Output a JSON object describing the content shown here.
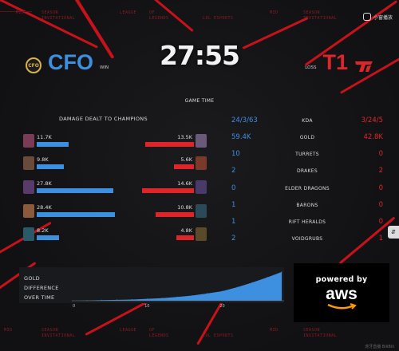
{
  "header": {
    "strip_items": [
      "MID",
      "SEASON",
      "INVITATIONAL",
      "LEAGUE",
      "OF",
      "LEGENDS",
      "LOL",
      "ESPORTS",
      "MID",
      "SEASON",
      "INVITATIONAL"
    ]
  },
  "footer": {
    "strip_items": [
      "MID",
      "SEASON",
      "INVITATIONAL",
      "LEAGUE",
      "OF",
      "LEGENDS",
      "LOL",
      "ESPORTS",
      "MID",
      "SEASON",
      "INVITATIONAL"
    ]
  },
  "overlay": {
    "watermark_label": "小窗播放"
  },
  "match": {
    "game_time": "27:55",
    "game_time_label": "GAME TIME",
    "left_team": {
      "name": "CFO",
      "result": "WIN",
      "logo_text": "CFO",
      "color": "#3d8fe0"
    },
    "right_team": {
      "name": "T1",
      "result": "LOSS",
      "color": "#e0252a"
    }
  },
  "damage": {
    "title": "DAMAGE DEALT TO CHAMPIONS",
    "left": [
      {
        "value": "11.7K",
        "raw": 11.7,
        "portrait_color": "#7b3a55"
      },
      {
        "value": "9.8K",
        "raw": 9.8,
        "portrait_color": "#6a4a3a"
      },
      {
        "value": "27.8K",
        "raw": 27.8,
        "portrait_color": "#5a3a6a"
      },
      {
        "value": "28.4K",
        "raw": 28.4,
        "portrait_color": "#8a5a3a"
      },
      {
        "value": "8.2K",
        "raw": 8.2,
        "portrait_color": "#2a5a6a"
      }
    ],
    "right": [
      {
        "value": "13.5K",
        "raw": 13.5,
        "portrait_color": "#6a5a7a"
      },
      {
        "value": "5.6K",
        "raw": 5.6,
        "portrait_color": "#7a3a2a"
      },
      {
        "value": "14.6K",
        "raw": 14.6,
        "portrait_color": "#4a3a6a"
      },
      {
        "value": "10.8K",
        "raw": 10.8,
        "portrait_color": "#2a4a5a"
      },
      {
        "value": "4.8K",
        "raw": 4.8,
        "portrait_color": "#5a4a2a"
      }
    ],
    "max_scale": 29
  },
  "stats": [
    {
      "label": "KDA",
      "left": "24/3/63",
      "right": "3/24/5"
    },
    {
      "label": "GOLD",
      "left": "59.4K",
      "right": "42.8K"
    },
    {
      "label": "TURRETS",
      "left": "10",
      "right": "0"
    },
    {
      "label": "DRAKES",
      "left": "2",
      "right": "2"
    },
    {
      "label": "ELDER DRAGONS",
      "left": "0",
      "right": "0"
    },
    {
      "label": "BARONS",
      "left": "1",
      "right": "0"
    },
    {
      "label": "RIFT HERALDS",
      "left": "1",
      "right": "0"
    },
    {
      "label": "VOIDGRUBS",
      "left": "2",
      "right": "1"
    }
  ],
  "gold_diff": {
    "label_lines": [
      "GOLD",
      "DIFFERENCE",
      "OVER TIME"
    ],
    "tick_labels": [
      "0",
      "10",
      "20"
    ]
  },
  "chart_data": {
    "type": "area",
    "title": "",
    "xlabel": "",
    "ylabel": "",
    "x": [
      0,
      2,
      4,
      6,
      8,
      10,
      12,
      14,
      16,
      18,
      20,
      22,
      24,
      26,
      27.9
    ],
    "series": [
      {
        "values": [
          0,
          100,
          300,
          500,
          700,
          1100,
          1500,
          2200,
          3000,
          4200,
          5500,
          7800,
          10500,
          13500,
          16600
        ]
      }
    ],
    "xlim": [
      0,
      28
    ],
    "ylim": [
      0,
      17000
    ],
    "xticks": [
      0,
      10,
      20
    ],
    "color": "#3d8fe0"
  },
  "sponsor": {
    "powered_by": "powered by",
    "logo": "aws"
  },
  "side_button_glyph": "⇵",
  "bottom_watermark": "虎牙直播 BiliBili"
}
